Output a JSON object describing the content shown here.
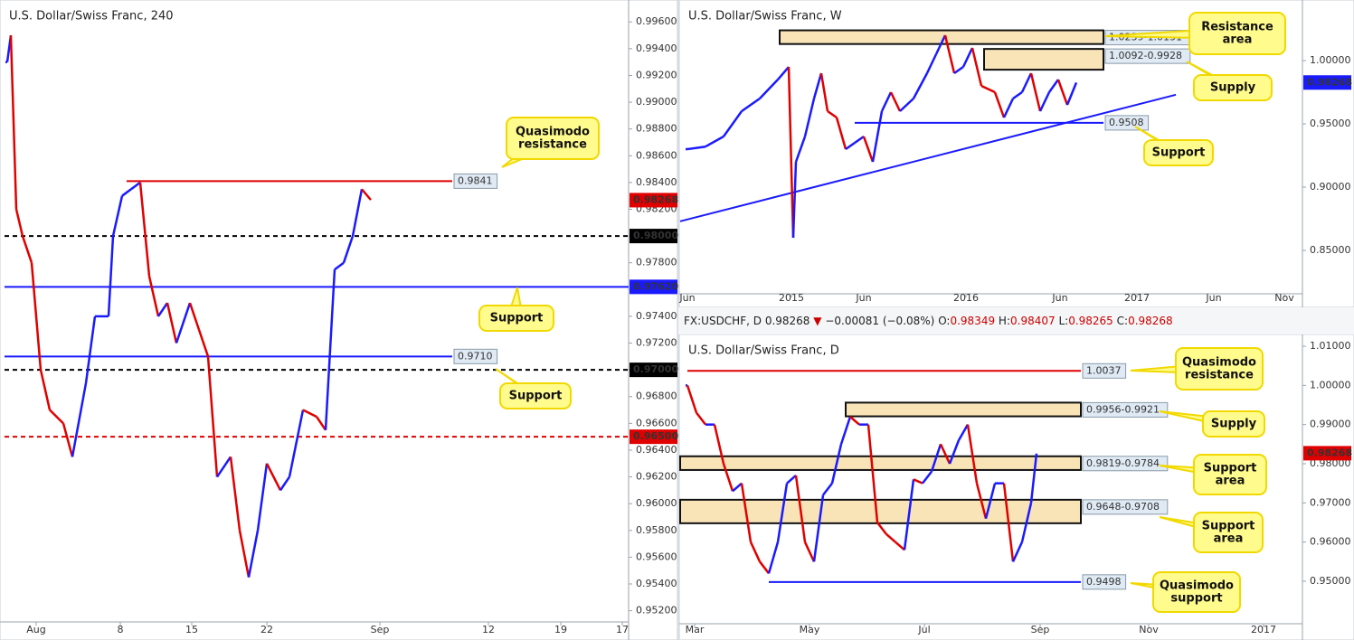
{
  "info": {
    "symbol": "FX:USDCHF, D",
    "price": "0.98268",
    "arrow": "▼",
    "change": "−0.00081 (−0.08%)",
    "o": "O:",
    "ov": "0.98349",
    "h": "H:",
    "hv": "0.98407",
    "l": "L:",
    "lv": "0.98265",
    "c": "C:",
    "cv": "0.98268"
  },
  "chart_data": [
    {
      "type": "line",
      "title": "U.S. Dollar/Swiss Franc, 240",
      "colors": {
        "up": "#1a1aff",
        "down": "#e00000"
      },
      "x": [
        3,
        7,
        13,
        20,
        30,
        40,
        50,
        65,
        75,
        90,
        100,
        115,
        120,
        130,
        140,
        150,
        160,
        170,
        180,
        190,
        205,
        215,
        225,
        235,
        250,
        260,
        270,
        280,
        290,
        305,
        315,
        330,
        345,
        355,
        365,
        375,
        385,
        395,
        405
      ],
      "values": [
        0.993,
        0.995,
        0.982,
        0.98,
        0.978,
        0.97,
        0.967,
        0.966,
        0.9635,
        0.969,
        0.974,
        0.974,
        0.98,
        0.983,
        0.9835,
        0.984,
        0.977,
        0.974,
        0.975,
        0.972,
        0.975,
        0.973,
        0.971,
        0.962,
        0.9635,
        0.958,
        0.9545,
        0.958,
        0.963,
        0.961,
        0.962,
        0.967,
        0.9665,
        0.9655,
        0.9775,
        0.978,
        0.98,
        0.9835,
        0.9827
      ],
      "xlim": [
        0,
        690
      ],
      "xticks": [
        {
          "value": 35,
          "label": "Aug"
        },
        {
          "value": 128,
          "label": "8"
        },
        {
          "value": 207,
          "label": "15"
        },
        {
          "value": 290,
          "label": "22"
        },
        {
          "value": 415,
          "label": "Sep"
        },
        {
          "value": 535,
          "label": "12"
        },
        {
          "value": 615,
          "label": "19"
        },
        {
          "value": 683,
          "label": "17"
        }
      ],
      "ylim": [
        0.9515,
        0.9973
      ],
      "yticks": [
        {
          "value": 0.952,
          "label": "0.95200"
        },
        {
          "value": 0.954,
          "label": "0.95400"
        },
        {
          "value": 0.956,
          "label": "0.95600"
        },
        {
          "value": 0.958,
          "label": "0.95800"
        },
        {
          "value": 0.96,
          "label": "0.96000"
        },
        {
          "value": 0.962,
          "label": "0.96200"
        },
        {
          "value": 0.964,
          "label": "0.96400"
        },
        {
          "value": 0.966,
          "label": "0.96600"
        },
        {
          "value": 0.968,
          "label": "0.96800"
        },
        {
          "value": 0.97,
          "label": "0.97000"
        },
        {
          "value": 0.972,
          "label": "0.97200"
        },
        {
          "value": 0.974,
          "label": "0.97400"
        },
        {
          "value": 0.976,
          "label": "0.97600"
        },
        {
          "value": 0.978,
          "label": "0.97800"
        },
        {
          "value": 0.98,
          "label": "0.98000"
        },
        {
          "value": 0.982,
          "label": "0.98200"
        },
        {
          "value": 0.984,
          "label": "0.98400"
        },
        {
          "value": 0.986,
          "label": "0.98600"
        },
        {
          "value": 0.988,
          "label": "0.98800"
        },
        {
          "value": 0.99,
          "label": "0.99000"
        },
        {
          "value": 0.992,
          "label": "0.99200"
        },
        {
          "value": 0.994,
          "label": "0.99400"
        },
        {
          "value": 0.996,
          "label": "0.99600"
        }
      ],
      "levels": [
        {
          "value": 0.9841,
          "label": "0.9841",
          "color": "#e00000",
          "style": "solid"
        },
        {
          "value": 0.98,
          "label": "0.98000",
          "color": "#000000",
          "style": "dashed"
        },
        {
          "value": 0.9762,
          "label": "0.97620",
          "color": "#1a1aff",
          "style": "solid"
        },
        {
          "value": 0.971,
          "label": "0.9710",
          "color": "#1a1aff",
          "style": "solid"
        },
        {
          "value": 0.97,
          "label": "0.97000",
          "color": "#000000",
          "style": "dashed"
        },
        {
          "value": 0.965,
          "label": "0.96500",
          "color": "#e00000",
          "style": "dashed"
        }
      ],
      "zones": [],
      "trendlines": [],
      "last": {
        "value": 0.98268,
        "label": "0.98268",
        "color": "#e00000"
      },
      "annotations": [
        {
          "lines": [
            "Quasimodo",
            "resistance"
          ]
        },
        {
          "lines": [
            "Support"
          ]
        },
        {
          "lines": [
            "Support"
          ]
        }
      ]
    },
    {
      "type": "line",
      "title": "U.S. Dollar/Swiss Franc, W",
      "colors": {
        "up": "#1a1aff",
        "down": "#e00000"
      },
      "x": [
        8,
        28,
        48,
        68,
        88,
        108,
        120,
        125,
        128,
        138,
        148,
        156,
        163,
        173,
        183,
        193,
        203,
        213,
        223,
        233,
        243,
        258,
        273,
        283,
        293,
        303,
        313,
        323,
        333,
        348,
        358,
        368,
        378,
        388,
        398,
        408,
        418,
        428,
        438
      ],
      "values": [
        0.93,
        0.932,
        0.94,
        0.96,
        0.97,
        0.985,
        0.995,
        0.86,
        0.92,
        0.94,
        0.97,
        0.99,
        0.96,
        0.955,
        0.93,
        0.935,
        0.94,
        0.92,
        0.96,
        0.975,
        0.96,
        0.97,
        0.99,
        1.005,
        1.02,
        0.99,
        0.995,
        1.01,
        0.98,
        0.975,
        0.955,
        0.97,
        0.975,
        0.99,
        0.96,
        0.975,
        0.985,
        0.965,
        0.9826
      ],
      "xlim": [
        0,
        688
      ],
      "xticks": [
        {
          "value": 8,
          "label": "Jun"
        },
        {
          "value": 123,
          "label": "2015"
        },
        {
          "value": 203,
          "label": "Jun"
        },
        {
          "value": 316,
          "label": "2016"
        },
        {
          "value": 420,
          "label": "Jun"
        },
        {
          "value": 505,
          "label": "2017"
        },
        {
          "value": 590,
          "label": "Jun"
        },
        {
          "value": 668,
          "label": "Nov"
        }
      ],
      "ylim": [
        0.8193,
        1.0443
      ],
      "yticks": [
        {
          "value": 0.85,
          "label": "0.85000"
        },
        {
          "value": 0.9,
          "label": "0.90000"
        },
        {
          "value": 0.95,
          "label": "0.95000"
        },
        {
          "value": 1.0,
          "label": "1.00000"
        }
      ],
      "levels": [
        {
          "value": 0.9508,
          "label": "0.9508",
          "color": "#1a1aff",
          "style": "solid"
        }
      ],
      "zones": [
        {
          "top": 1.0239,
          "bottom": 1.0131,
          "label": "1.0239-1.0131"
        },
        {
          "top": 1.0092,
          "bottom": 0.9928,
          "label": "1.0092-0.9928"
        }
      ],
      "trendlines": [
        {
          "x": [
            0,
            548
          ],
          "values": [
            0.873,
            0.973
          ],
          "color": "#1a1aff"
        }
      ],
      "last": {
        "value": 0.98268,
        "label": "0.98268",
        "color": "#1a1aff"
      },
      "annotations": [
        {
          "lines": [
            "Resistance",
            "area"
          ]
        },
        {
          "lines": [
            "Supply"
          ]
        },
        {
          "lines": [
            "Support"
          ]
        }
      ]
    },
    {
      "type": "line",
      "title": "U.S. Dollar/Swiss Franc, D",
      "colors": {
        "up": "#1a1aff",
        "down": "#e00000"
      },
      "x": [
        8,
        18,
        28,
        38,
        48,
        58,
        68,
        78,
        88,
        98,
        108,
        118,
        128,
        138,
        148,
        158,
        168,
        178,
        188,
        198,
        208,
        218,
        228,
        238,
        248,
        258,
        268,
        278,
        288,
        298,
        308,
        318,
        328,
        338,
        348,
        358,
        368,
        378,
        388,
        394
      ],
      "values": [
        1.0,
        0.993,
        0.99,
        0.99,
        0.98,
        0.973,
        0.975,
        0.96,
        0.955,
        0.952,
        0.96,
        0.975,
        0.977,
        0.96,
        0.955,
        0.972,
        0.975,
        0.985,
        0.992,
        0.99,
        0.99,
        0.965,
        0.962,
        0.96,
        0.958,
        0.976,
        0.975,
        0.978,
        0.985,
        0.98,
        0.986,
        0.99,
        0.975,
        0.966,
        0.975,
        0.975,
        0.955,
        0.96,
        0.97,
        0.9826
      ],
      "xlim": [
        0,
        688
      ],
      "xticks": [
        {
          "value": 16,
          "label": "Mar"
        },
        {
          "value": 143,
          "label": "May"
        },
        {
          "value": 270,
          "label": "Jul"
        },
        {
          "value": 398,
          "label": "Sep"
        },
        {
          "value": 518,
          "label": "Nov"
        },
        {
          "value": 645,
          "label": "2017"
        }
      ],
      "ylim": [
        0.9403,
        1.01185
      ],
      "yticks": [
        {
          "value": 0.95,
          "label": "0.95000"
        },
        {
          "value": 0.96,
          "label": "0.96000"
        },
        {
          "value": 0.97,
          "label": "0.97000"
        },
        {
          "value": 0.98,
          "label": "0.98000"
        },
        {
          "value": 0.99,
          "label": "0.99000"
        },
        {
          "value": 1.0,
          "label": "1.00000"
        },
        {
          "value": 1.01,
          "label": "1.01000"
        }
      ],
      "levels": [
        {
          "value": 1.0037,
          "label": "1.0037",
          "color": "#e00000",
          "style": "solid"
        },
        {
          "value": 0.9498,
          "label": "0.9498",
          "color": "#1a1aff",
          "style": "solid"
        }
      ],
      "zones": [
        {
          "top": 0.9956,
          "bottom": 0.9921,
          "label": "0.9956-0.9921"
        },
        {
          "top": 0.9819,
          "bottom": 0.9784,
          "label": "0.9819-0.9784"
        },
        {
          "top": 0.9708,
          "bottom": 0.9648,
          "label": "0.9648-0.9708"
        }
      ],
      "trendlines": [],
      "last": {
        "value": 0.98268,
        "label": "0.98268",
        "color": "#e00000"
      },
      "annotations": [
        {
          "lines": [
            "Quasimodo",
            "resistance"
          ]
        },
        {
          "lines": [
            "Supply"
          ]
        },
        {
          "lines": [
            "Support",
            "area"
          ]
        },
        {
          "lines": [
            "Support",
            "area"
          ]
        },
        {
          "lines": [
            "Quasimodo",
            "support"
          ]
        }
      ]
    }
  ]
}
